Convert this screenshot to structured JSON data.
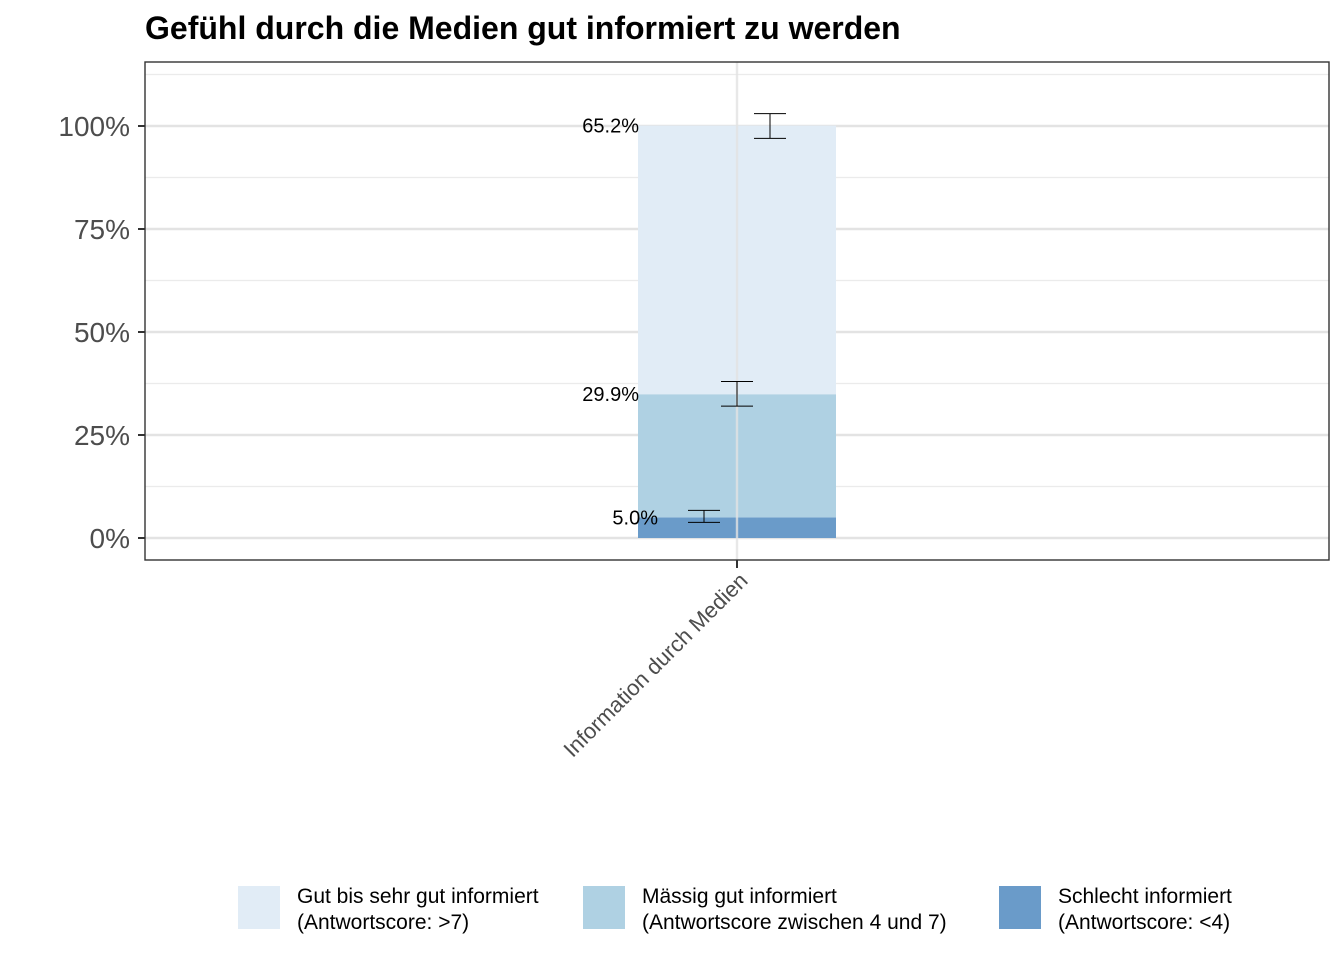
{
  "chart_data": {
    "type": "bar",
    "title": "Gefühl durch die Medien gut informiert zu werden",
    "xlabel": "",
    "ylabel": "",
    "ylim": [
      -0.05,
      1.15
    ],
    "y_ticks": [
      0,
      0.25,
      0.5,
      0.75,
      1.0
    ],
    "y_tick_labels": [
      "0%",
      "25%",
      "50%",
      "75%",
      "100%"
    ],
    "categories": [
      "Information durch Medien"
    ],
    "stacked": true,
    "grid": true,
    "legend_position": "bottom",
    "series": [
      {
        "name": "Schlecht informiert (Antwortscore: <4)",
        "legend_lines": [
          "Schlecht informiert",
          "(Antwortscore: <4)"
        ],
        "color": "#6a9bc9",
        "values": [
          0.05
        ],
        "label": "5.0%",
        "error_low": 0.038,
        "error_high": 0.067
      },
      {
        "name": "Mässig gut informiert (Antwortscore zwischen 4 und 7)",
        "legend_lines": [
          "Mässig gut informiert",
          "(Antwortscore zwischen 4 und 7)"
        ],
        "color": "#afd1e3",
        "values": [
          0.299
        ],
        "label": "29.9%",
        "error_low": 0.32,
        "error_high": 0.38
      },
      {
        "name": "Gut bis sehr gut informiert (Antwortscore: >7)",
        "legend_lines": [
          "Gut bis sehr gut informiert",
          "(Antwortscore: >7)"
        ],
        "color": "#e1ecf6",
        "values": [
          0.652
        ],
        "label": "65.2%",
        "error_low": 0.97,
        "error_high": 1.03
      }
    ]
  }
}
